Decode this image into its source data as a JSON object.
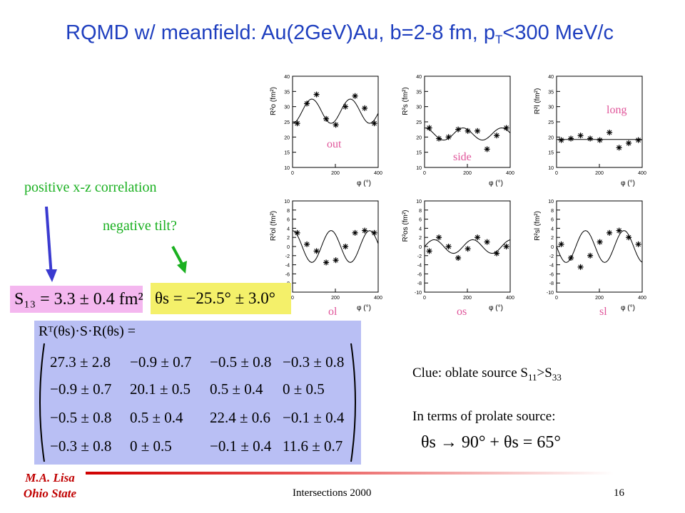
{
  "title": {
    "main": "RQMD w/ meanfield: Au(2GeV)Au, b=2-8 fm, p",
    "sub": "T",
    "rest": "<300 MeV/c"
  },
  "annotations": {
    "positive": "positive x-z correlation",
    "negative": "negative tilt?"
  },
  "formulas": {
    "s13": "S₁₃ = 3.3 ± 0.4 fm²",
    "theta": "θs = −25.5° ± 3.0°",
    "rotation": "Rᵀ(θs)·S·R(θs) ="
  },
  "matrix": [
    [
      "27.3 ± 2.8",
      "−0.9 ± 0.7",
      "−0.5 ± 0.8",
      "−0.3 ± 0.8"
    ],
    [
      "−0.9 ± 0.7",
      "20.1 ± 0.5",
      "0.5 ± 0.4",
      "0 ± 0.5"
    ],
    [
      "−0.5 ± 0.8",
      "0.5 ± 0.4",
      "22.4 ± 0.6",
      "−0.1 ± 0.4"
    ],
    [
      "−0.3 ± 0.8",
      "0 ± 0.5",
      "−0.1 ± 0.4",
      "11.6 ± 0.7"
    ]
  ],
  "clue": {
    "prefix": "Clue: oblate source S",
    "sub1": "11",
    "mid": ">S",
    "sub2": "33"
  },
  "prolate": "In terms of prolate source:",
  "prolate_formula": "θs → 90° + θs = 65°",
  "footer": {
    "author1": "M.A. Lisa",
    "author2": "Ohio State",
    "center": "Intersections 2000",
    "page": "16"
  },
  "colors": {
    "title": "#1f3fbf",
    "green": "#1ab020",
    "pink": "#f4b7ef",
    "yellow": "#f4f06a",
    "matrix": "#b9bff4",
    "label": "#e0559a",
    "arrow_blue": "#3a3ad0",
    "arrow_green": "#1ab020"
  },
  "chart_data": [
    {
      "type": "scatter",
      "label": "out",
      "ylabel": "R²o (fm²)",
      "xlabel": "φ (°)",
      "xlim": [
        0,
        400
      ],
      "ylim": [
        10,
        40
      ],
      "yticks": [
        10,
        15,
        20,
        25,
        30,
        35,
        40
      ],
      "xticks": [
        0,
        200,
        400
      ],
      "x": [
        22,
        67,
        112,
        157,
        202,
        247,
        292,
        337,
        382
      ],
      "y": [
        24.5,
        31,
        34,
        26,
        24,
        30,
        33.5,
        29.5,
        24.5
      ],
      "fit": "cos",
      "fit_params": [
        28.5,
        4,
        0,
        0
      ]
    },
    {
      "type": "scatter",
      "label": "side",
      "ylabel": "R²s (fm²)",
      "xlabel": "φ (°)",
      "xlim": [
        0,
        400
      ],
      "ylim": [
        10,
        40
      ],
      "yticks": [
        10,
        15,
        20,
        25,
        30,
        35,
        40
      ],
      "xticks": [
        0,
        200,
        400
      ],
      "x": [
        22,
        67,
        112,
        157,
        202,
        247,
        292,
        337,
        382
      ],
      "y": [
        23,
        19.5,
        20,
        22.5,
        22,
        22,
        16,
        20.5,
        23
      ],
      "fit": "cos",
      "fit_params": [
        21,
        2,
        0,
        0
      ]
    },
    {
      "type": "scatter",
      "label": "long",
      "ylabel": "R²l (fm²)",
      "xlabel": "φ (°)",
      "xlim": [
        0,
        400
      ],
      "ylim": [
        10,
        40
      ],
      "yticks": [
        10,
        15,
        20,
        25,
        30,
        35,
        40
      ],
      "xticks": [
        0,
        200,
        400
      ],
      "x": [
        22,
        67,
        112,
        157,
        202,
        247,
        292,
        337,
        382
      ],
      "y": [
        19,
        19.5,
        20.5,
        19.5,
        19,
        21.5,
        16.5,
        18,
        19
      ],
      "fit": "flat",
      "fit_params": [
        19.2,
        0,
        0,
        0
      ]
    },
    {
      "type": "scatter",
      "label": "ol",
      "ylabel": "R²ol (fm²)",
      "xlabel": "φ (°)",
      "xlim": [
        0,
        400
      ],
      "ylim": [
        -10,
        10
      ],
      "yticks": [
        -10,
        -8,
        -6,
        -4,
        -2,
        0,
        2,
        4,
        6,
        8,
        10
      ],
      "xticks": [
        0,
        200,
        400
      ],
      "x": [
        22,
        67,
        112,
        157,
        202,
        247,
        292,
        337,
        382
      ],
      "y": [
        3,
        0.5,
        -1,
        -3.5,
        -3,
        0,
        3,
        3.5,
        3
      ],
      "fit": "cos",
      "fit_params": [
        0,
        3.5,
        0,
        0
      ]
    },
    {
      "type": "scatter",
      "label": "os",
      "ylabel": "R²os (fm²)",
      "xlabel": "φ (°)",
      "xlim": [
        0,
        400
      ],
      "ylim": [
        -10,
        10
      ],
      "yticks": [
        -10,
        -8,
        -6,
        -4,
        -2,
        0,
        2,
        4,
        6,
        8,
        10
      ],
      "xticks": [
        0,
        200,
        400
      ],
      "x": [
        22,
        67,
        112,
        157,
        202,
        247,
        292,
        337,
        382
      ],
      "y": [
        -1,
        2,
        0,
        -2.5,
        -0.5,
        2,
        1,
        -1.5,
        0
      ],
      "fit": "sin",
      "fit_params": [
        0,
        0,
        1.5,
        0
      ]
    },
    {
      "type": "scatter",
      "label": "sl",
      "ylabel": "R²sl (fm²)",
      "xlabel": "φ (°)",
      "xlim": [
        0,
        400
      ],
      "ylim": [
        -10,
        10
      ],
      "yticks": [
        -10,
        -8,
        -6,
        -4,
        -2,
        0,
        2,
        4,
        6,
        8,
        10
      ],
      "xticks": [
        0,
        200,
        400
      ],
      "x": [
        22,
        67,
        112,
        157,
        202,
        247,
        292,
        337,
        382
      ],
      "y": [
        0.5,
        -2.5,
        -4.5,
        -2,
        1,
        3,
        3.5,
        2,
        0.5
      ],
      "fit": "sinneg",
      "fit_params": [
        0,
        0,
        3.5,
        0
      ]
    }
  ]
}
